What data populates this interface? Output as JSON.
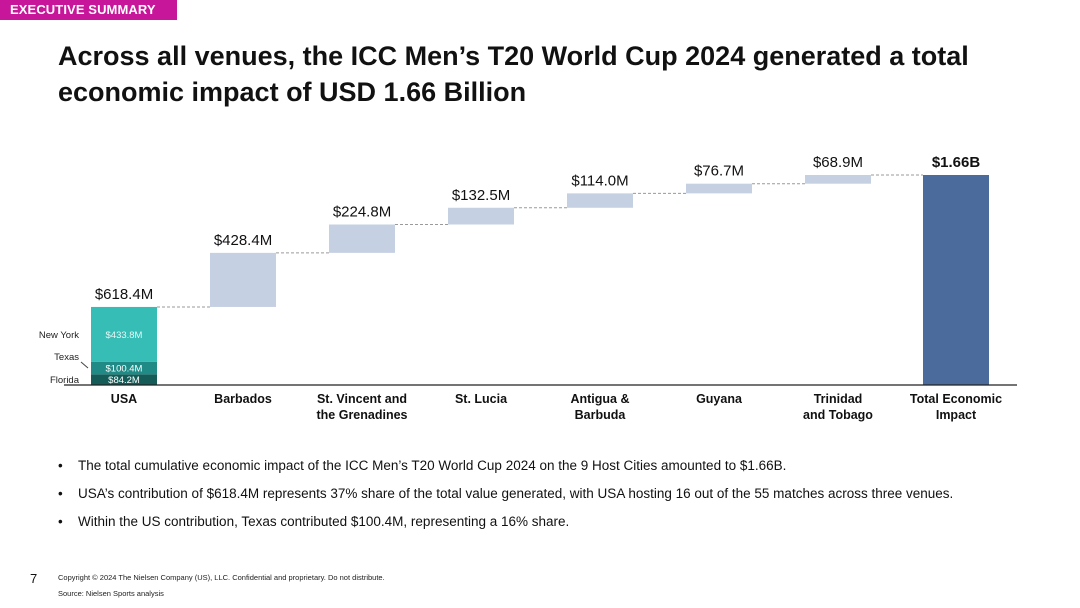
{
  "header": {
    "tag": "EXECUTIVE SUMMARY",
    "title": "Across all venues, the ICC Men’s T20 World Cup 2024 generated a total economic impact of USD 1.66 Billion"
  },
  "colors": {
    "tag_bg": "#c8169b",
    "increment": "#c5d0e2",
    "total": "#4a6b9b",
    "new_york": "#35bdb6",
    "texas": "#1f8a86",
    "florida": "#155c59"
  },
  "chart_data": {
    "type": "bar",
    "subtype": "waterfall",
    "categories": [
      "USA",
      "Barbados",
      "St. Vincent and\nthe Grenadines",
      "St. Lucia",
      "Antigua &\nBarbuda",
      "Guyana",
      "Trinidad\nand Tobago",
      "Total Economic\nImpact"
    ],
    "values": [
      618.4,
      428.4,
      224.8,
      132.5,
      114.0,
      76.7,
      68.9,
      1663.7
    ],
    "value_labels": [
      "$618.4M",
      "$428.4M",
      "$224.8M",
      "$132.5M",
      "$114.0M",
      "$76.7M",
      "$68.9M",
      "$1.66B"
    ],
    "unit": "USD M",
    "ylim": [
      0,
      1700
    ],
    "usa_breakdown": [
      {
        "name": "Florida",
        "value": 84.2,
        "label": "$84.2M"
      },
      {
        "name": "Texas",
        "value": 100.4,
        "label": "$100.4M"
      },
      {
        "name": "New York",
        "value": 433.8,
        "label": "$433.8M"
      }
    ]
  },
  "bullets": [
    "The total cumulative economic impact of the ICC Men’s T20 World Cup 2024 on the 9 Host Cities amounted to $1.66B.",
    "USA’s contribution of $618.4M represents 37% share of the total value generated, with USA hosting 16 out of the 55 matches across three venues.",
    "Within the US contribution, Texas contributed $100.4M, representing a 16% share."
  ],
  "bullet_char": "•",
  "footer": {
    "page_number": "7",
    "copyright": "Copyright © 2024 The Nielsen Company (US), LLC. Confidential and proprietary. Do not distribute.",
    "source": "Source: Nielsen Sports analysis"
  }
}
